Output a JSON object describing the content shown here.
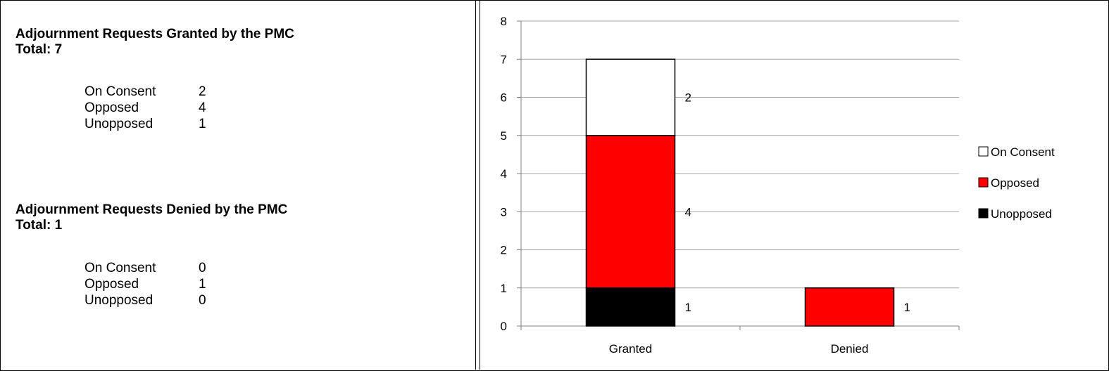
{
  "summary": {
    "granted": {
      "heading": "Adjournment Requests Granted by the PMC",
      "total_label": "Total: 7",
      "rows": [
        {
          "label": "On Consent",
          "value": "2"
        },
        {
          "label": "Opposed",
          "value": "4"
        },
        {
          "label": "Unopposed",
          "value": "1"
        }
      ]
    },
    "denied": {
      "heading": "Adjournment Requests Denied by the PMC",
      "total_label": "Total: 1",
      "rows": [
        {
          "label": "On Consent",
          "value": "0"
        },
        {
          "label": "Opposed",
          "value": "1"
        },
        {
          "label": "Unopposed",
          "value": "0"
        }
      ]
    }
  },
  "chart_data": {
    "type": "bar",
    "stacked": true,
    "categories": [
      "Granted",
      "Denied"
    ],
    "series": [
      {
        "name": "Unopposed",
        "values": [
          1,
          0
        ],
        "color": "#000000"
      },
      {
        "name": "Opposed",
        "values": [
          4,
          1
        ],
        "color": "#ff0000"
      },
      {
        "name": "On Consent",
        "values": [
          2,
          0
        ],
        "color": "#ffffff"
      }
    ],
    "ylim": [
      0,
      8
    ],
    "yticks": [
      0,
      1,
      2,
      3,
      4,
      5,
      6,
      7,
      8
    ],
    "grid": true,
    "legend_position": "right",
    "legend_order": [
      "On Consent",
      "Opposed",
      "Unopposed"
    ],
    "title": "",
    "xlabel": "",
    "ylabel": ""
  }
}
